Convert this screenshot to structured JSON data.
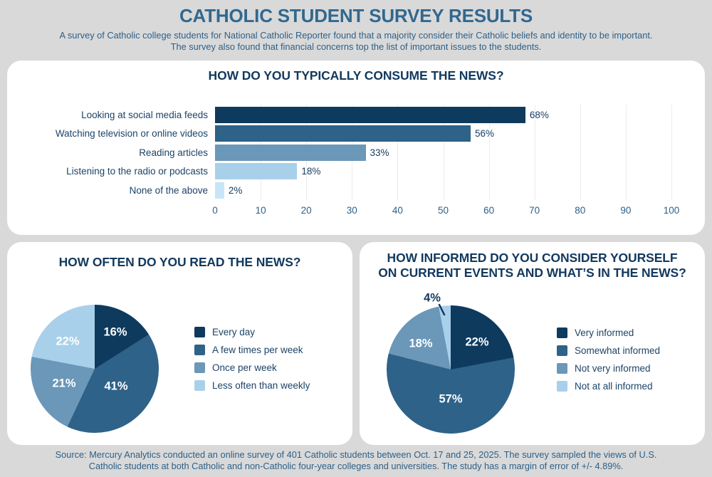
{
  "page": {
    "title": "CATHOLIC STUDENT SURVEY RESULTS",
    "subtitle_lines": [
      "A survey of Catholic college students for National Catholic Reporter found that a majority consider their Catholic beliefs and identity to be important.",
      "The survey also found that financial concerns top the list of important issues to the students."
    ],
    "footer_lines": [
      "Source: Mercury Analytics conducted an online survey of 401 Catholic students between Oct. 17 and 25, 2025. The survey sampled the views of U.S.",
      "Catholic students at both Catholic and non-Catholic four-year colleges and universities. The study has a margin of error of +/- 4.89%."
    ]
  },
  "colors": {
    "page_bg": "#d9d9d9",
    "card_bg": "#ffffff",
    "main_title": "#31688f",
    "subtitle_text": "#2d6089",
    "heading_text": "#12395e",
    "label_text": "#1b4367",
    "gridline": "#ececec",
    "bar_palette": [
      "#0e3a5e",
      "#2e6288",
      "#6b97b8",
      "#a8d0ea",
      "#c7e5f8"
    ],
    "pie_palette": [
      "#0e3a5e",
      "#2e6288",
      "#6b97b8",
      "#a8d0ea"
    ]
  },
  "chart_data": [
    {
      "type": "bar",
      "orientation": "horizontal",
      "title": "HOW DO YOU TYPICALLY CONSUME THE NEWS?",
      "categories": [
        "Looking at social media feeds",
        "Watching television or online videos",
        "Reading articles",
        "Listening to the radio or podcasts",
        "None of the above"
      ],
      "values": [
        68,
        56,
        33,
        18,
        2
      ],
      "value_labels": [
        "68%",
        "56%",
        "33%",
        "18%",
        "2%"
      ],
      "xlim": [
        0,
        100
      ],
      "xticks": [
        0,
        10,
        20,
        30,
        40,
        50,
        60,
        70,
        80,
        90,
        100
      ],
      "grid": "vertical",
      "bar_colors": [
        "#0e3a5e",
        "#2e6288",
        "#6b97b8",
        "#a8d0ea",
        "#c7e5f8"
      ]
    },
    {
      "type": "pie",
      "title": "HOW OFTEN DO YOU READ THE NEWS?",
      "labels": [
        "Every day",
        "A few times per week",
        "Once per week",
        "Less often than weekly"
      ],
      "values": [
        16,
        41,
        21,
        22
      ],
      "slice_labels": [
        "16%",
        "41%",
        "21%",
        "22%"
      ],
      "colors": [
        "#0e3a5e",
        "#2e6288",
        "#6b97b8",
        "#a8d0ea"
      ],
      "start_angle": "top",
      "direction": "clockwise",
      "legend_position": "right"
    },
    {
      "type": "pie",
      "title": "HOW INFORMED DO YOU CONSIDER YOURSELF ON CURRENT EVENTS AND WHAT’S IN THE NEWS?",
      "title_lines": [
        "HOW INFORMED DO YOU CONSIDER YOURSELF",
        "ON CURRENT EVENTS AND WHAT’S IN THE NEWS?"
      ],
      "labels": [
        "Very informed",
        "Somewhat informed",
        "Not very informed",
        "Not at all informed"
      ],
      "values": [
        22,
        57,
        18,
        4
      ],
      "slice_labels": [
        "22%",
        "57%",
        "18%",
        "4%"
      ],
      "colors": [
        "#0e3a5e",
        "#2e6288",
        "#6b97b8",
        "#a8d0ea"
      ],
      "start_angle": "top",
      "direction": "clockwise",
      "legend_position": "right",
      "callout": "4% labeled outside with leader line"
    }
  ]
}
